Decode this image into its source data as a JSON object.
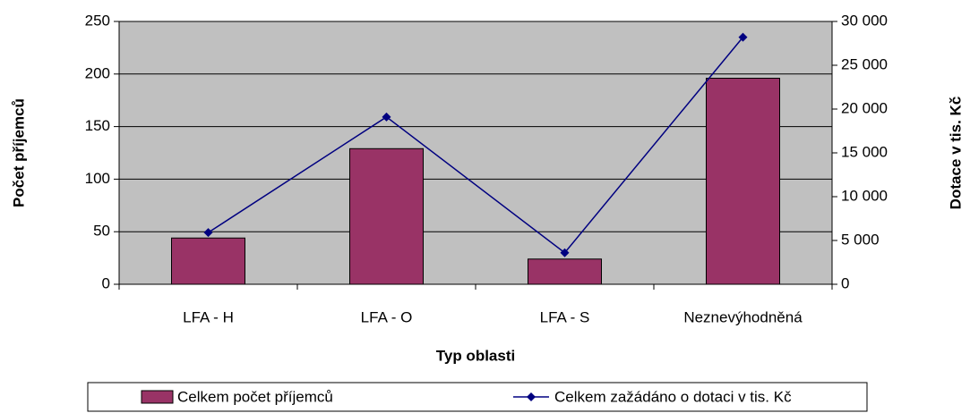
{
  "chart_data": {
    "type": "combo",
    "x_label": "Typ oblasti",
    "y_label": "Počet příjemců",
    "y2_label": "Dotace v tis. Kč",
    "categories": [
      "LFA - H",
      "LFA - O",
      "LFA - S",
      "Neznevýhodněná"
    ],
    "series": [
      {
        "name": "Celkem počet příjemců",
        "type": "bar",
        "color": "#993366",
        "values": [
          44,
          129,
          24,
          196
        ]
      },
      {
        "name": "Celkem zažádáno o dotaci v tis. Kč",
        "type": "line",
        "color": "#000080",
        "axis": "y2",
        "values": [
          5900,
          19100,
          3600,
          28200
        ]
      }
    ],
    "ylim": [
      0,
      250
    ],
    "yticks": [
      0,
      50,
      100,
      150,
      200,
      250
    ],
    "y2lim": [
      0,
      30000
    ],
    "y2ticks": [
      0,
      {
        "value": 5000,
        "label": "5 000"
      },
      {
        "value": 10000,
        "label": "10 000"
      },
      {
        "value": 15000,
        "label": "15 000"
      },
      {
        "value": 20000,
        "label": "20 000"
      },
      {
        "value": 25000,
        "label": "25 000"
      },
      {
        "value": 30000,
        "label": "30 000"
      }
    ],
    "grid": true,
    "legend": "bottom"
  }
}
